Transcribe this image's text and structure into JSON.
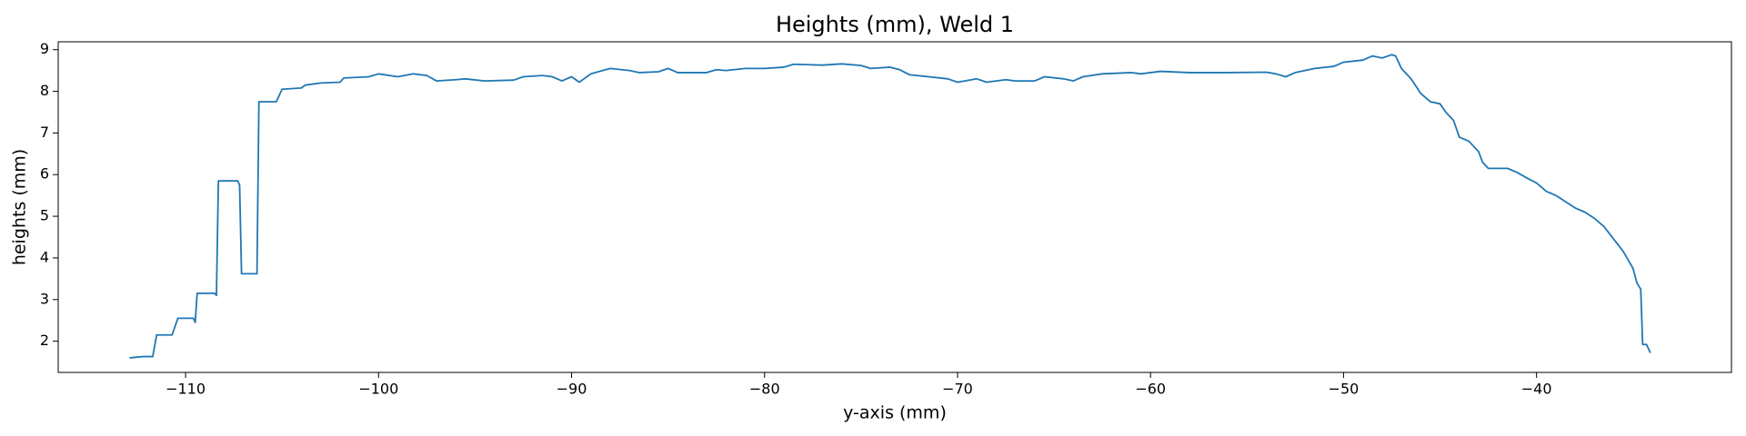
{
  "chart_data": {
    "type": "line",
    "title": "Heights (mm), Weld 1",
    "x_label": "y-axis (mm)",
    "y_label": "heights (mm)",
    "color": "#1f77b4",
    "x": [
      -112.9,
      -112.2,
      -111.7,
      -111.5,
      -110.7,
      -110.4,
      -109.6,
      -109.5,
      -109.4,
      -108.5,
      -108.4,
      -108.3,
      -107.3,
      -107.2,
      -107.1,
      -106.3,
      -106.2,
      -105.3,
      -105.0,
      -104.0,
      -103.8,
      -103.0,
      -102.0,
      -101.8,
      -100.5,
      -100.0,
      -99.0,
      -98.2,
      -97.5,
      -97.0,
      -96.0,
      -95.5,
      -94.5,
      -93.0,
      -92.5,
      -91.5,
      -91.0,
      -90.5,
      -90.0,
      -89.6,
      -89.0,
      -88.0,
      -87.0,
      -86.5,
      -85.5,
      -85.0,
      -84.5,
      -83.0,
      -82.5,
      -82.0,
      -81.0,
      -80.0,
      -79.0,
      -78.5,
      -77.0,
      -76.0,
      -75.0,
      -74.5,
      -73.5,
      -73.0,
      -72.5,
      -71.5,
      -70.5,
      -70.0,
      -69.0,
      -68.5,
      -67.5,
      -67.0,
      -66.0,
      -65.5,
      -64.5,
      -64.0,
      -63.5,
      -62.5,
      -61.0,
      -60.5,
      -59.5,
      -58.0,
      -56.0,
      -54.0,
      -53.5,
      -53.0,
      -52.5,
      -51.5,
      -50.5,
      -50.0,
      -49.0,
      -48.5,
      -48.0,
      -47.5,
      -47.3,
      -47.0,
      -46.5,
      -46.0,
      -45.5,
      -45.0,
      -44.7,
      -44.3,
      -44.0,
      -43.5,
      -43.0,
      -42.8,
      -42.5,
      -41.5,
      -41.0,
      -40.5,
      -40.0,
      -39.5,
      -39.0,
      -38.5,
      -38.0,
      -37.5,
      -37.0,
      -36.5,
      -36.0,
      -35.5,
      -35.0,
      -34.8,
      -34.6,
      -34.5,
      -34.3,
      -34.1
    ],
    "values": [
      1.6,
      1.63,
      1.63,
      2.15,
      2.15,
      2.55,
      2.55,
      2.45,
      3.15,
      3.15,
      3.1,
      5.85,
      5.85,
      5.75,
      3.62,
      3.62,
      7.75,
      7.75,
      8.05,
      8.08,
      8.15,
      8.2,
      8.22,
      8.32,
      8.35,
      8.42,
      8.35,
      8.42,
      8.38,
      8.25,
      8.28,
      8.3,
      8.25,
      8.27,
      8.35,
      8.38,
      8.35,
      8.25,
      8.35,
      8.22,
      8.42,
      8.55,
      8.5,
      8.45,
      8.47,
      8.55,
      8.45,
      8.45,
      8.52,
      8.5,
      8.55,
      8.55,
      8.58,
      8.65,
      8.63,
      8.66,
      8.62,
      8.55,
      8.58,
      8.52,
      8.4,
      8.35,
      8.3,
      8.22,
      8.3,
      8.22,
      8.28,
      8.25,
      8.25,
      8.35,
      8.3,
      8.25,
      8.35,
      8.42,
      8.45,
      8.42,
      8.48,
      8.45,
      8.45,
      8.46,
      8.42,
      8.35,
      8.45,
      8.55,
      8.6,
      8.7,
      8.75,
      8.85,
      8.8,
      8.88,
      8.85,
      8.55,
      8.3,
      7.95,
      7.75,
      7.7,
      7.5,
      7.3,
      6.9,
      6.8,
      6.55,
      6.3,
      6.15,
      6.15,
      6.05,
      5.92,
      5.8,
      5.6,
      5.5,
      5.35,
      5.2,
      5.1,
      4.95,
      4.75,
      4.45,
      4.15,
      3.75,
      3.4,
      3.25,
      1.92,
      1.92,
      1.72
    ],
    "xlim": [
      -116.6,
      -29.9
    ],
    "ylim": [
      1.25,
      9.19
    ],
    "xticks": [
      {
        "value": -110,
        "label": "−110"
      },
      {
        "value": -100,
        "label": "−100"
      },
      {
        "value": -90,
        "label": "−90"
      },
      {
        "value": -80,
        "label": "−80"
      },
      {
        "value": -70,
        "label": "−70"
      },
      {
        "value": -60,
        "label": "−60"
      },
      {
        "value": -50,
        "label": "−50"
      },
      {
        "value": -40,
        "label": "−40"
      }
    ],
    "yticks": [
      2,
      3,
      4,
      5,
      6,
      7,
      8,
      9
    ]
  }
}
